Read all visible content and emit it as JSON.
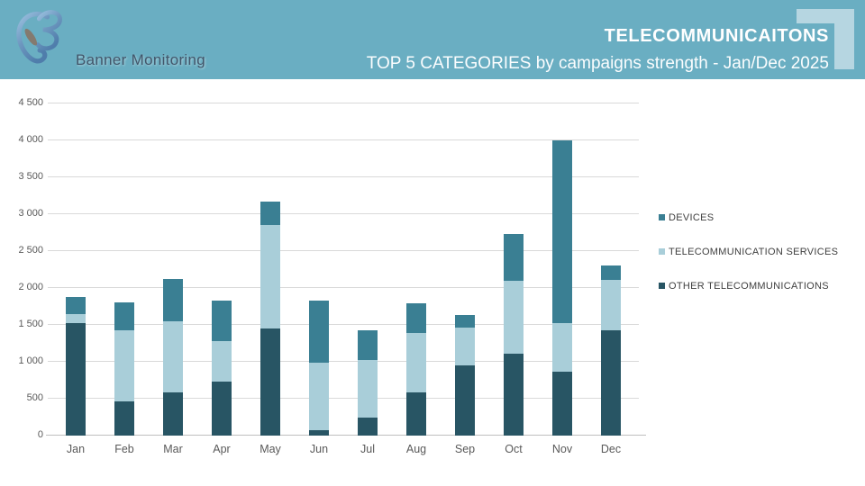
{
  "header": {
    "logo_text": "Banner Monitoring",
    "title": "TELECOMMUNICAITONS",
    "subtitle": "TOP 5 CATEGORIES by campaigns strength - Jan/Dec 2025",
    "band_color": "#6aaec2",
    "corner_accent_color": "#b6d6e1"
  },
  "legend": {
    "items": [
      {
        "label": "DEVICES",
        "color": "#3a7f93"
      },
      {
        "label": "TELECOMMUNICATION SERVICES",
        "color": "#a9ced9"
      },
      {
        "label": "OTHER TELECOMMUNICATIONS",
        "color": "#285564"
      }
    ]
  },
  "chart_data": {
    "type": "bar",
    "stacked": true,
    "title": "TOP 5 CATEGORIES by campaigns strength - Jan/Dec 2025",
    "xlabel": "",
    "ylabel": "",
    "categories": [
      "Jan",
      "Feb",
      "Mar",
      "Apr",
      "May",
      "Jun",
      "Jul",
      "Aug",
      "Sep",
      "Oct",
      "Nov",
      "Dec"
    ],
    "series": [
      {
        "name": "OTHER TELECOMMUNICATIONS",
        "color": "#285564",
        "values": [
          1520,
          460,
          590,
          730,
          1450,
          75,
          240,
          580,
          950,
          1110,
          870,
          1430
        ]
      },
      {
        "name": "TELECOMMUNICATION SERVICES",
        "color": "#a9ced9",
        "values": [
          130,
          965,
          955,
          555,
          1400,
          915,
          790,
          810,
          510,
          990,
          650,
          680
        ]
      },
      {
        "name": "DEVICES",
        "color": "#3a7f93",
        "values": [
          230,
          375,
          575,
          545,
          320,
          835,
          400,
          400,
          180,
          630,
          2480,
          195
        ]
      }
    ],
    "totals": [
      1880,
      1800,
      2120,
      1830,
      3170,
      1825,
      1430,
      1790,
      1640,
      2730,
      4000,
      2305
    ],
    "ylim": [
      0,
      4500
    ],
    "y_ticks": [
      "0",
      "500",
      "1 000",
      "1 500",
      "2 000",
      "2 500",
      "3 000",
      "3 500",
      "4 000",
      "4 500"
    ],
    "grid": true,
    "legend_position": "right",
    "grid_color": "#d9d9d9",
    "tick_label_color": "#595959"
  }
}
